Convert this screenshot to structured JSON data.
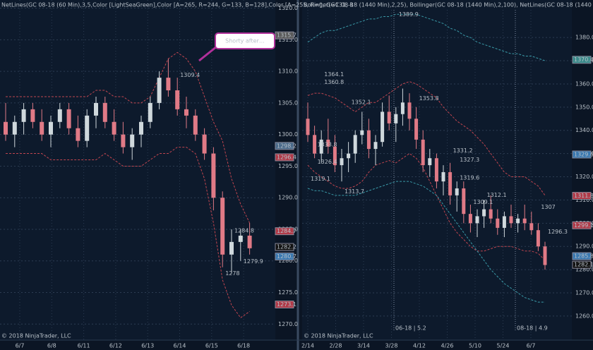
{
  "chart_data": [
    {
      "type": "candlestick",
      "header": "NetLines(GC 08-18 (60 Min),3,5,Color [LightSeaGreen],Color [A=265, R=244, G=133, B=128],Color [A=255, R=0, G=131, B",
      "footer": "© 2018 NinjaTrader, LLC",
      "annotation": "Shorty after…",
      "categories": [
        "6/7",
        "6/8",
        "6/11",
        "6/12",
        "6/13",
        "6/14",
        "6/15",
        "6/18"
      ],
      "ylim": [
        1268.8,
        1321.3
      ],
      "yticks": [
        {
          "value": 1320,
          "label": "1320.0"
        },
        {
          "value": 1315,
          "label": "1315.0"
        },
        {
          "value": 1310,
          "label": "1310.0"
        },
        {
          "value": 1305,
          "label": "1305.0"
        },
        {
          "value": 1300,
          "label": "1300.0"
        },
        {
          "value": 1295,
          "label": "1295.0"
        },
        {
          "value": 1290,
          "label": "1290.0"
        },
        {
          "value": 1285,
          "label": "1285.0"
        },
        {
          "value": 1280,
          "label": "1280.0"
        },
        {
          "value": 1275,
          "label": "1275.0"
        },
        {
          "value": 1270,
          "label": "1270.0"
        }
      ],
      "candles": {
        "open": [
          1302,
          1300,
          1302,
          1304,
          1302,
          1300,
          1302,
          1304,
          1301,
          1299,
          1303,
          1305,
          1302,
          1300,
          1298,
          1300,
          1302,
          1305,
          1309,
          1307,
          1304,
          1303,
          1300,
          1297,
          1290,
          1281,
          1283,
          1284
        ],
        "high": [
          1305,
          1303,
          1305,
          1305,
          1304,
          1303,
          1305,
          1305,
          1303,
          1304,
          1306,
          1306,
          1304,
          1302,
          1301,
          1303,
          1306,
          1310,
          1312,
          1309,
          1306,
          1304,
          1301,
          1298,
          1291,
          1285,
          1285,
          1286
        ],
        "low": [
          1299,
          1298,
          1300,
          1301,
          1299,
          1298,
          1301,
          1300,
          1298,
          1298,
          1301,
          1301,
          1299,
          1297,
          1296,
          1298,
          1301,
          1304,
          1306,
          1303,
          1301,
          1299,
          1296,
          1288,
          1279,
          1278,
          1280,
          1281
        ],
        "close": [
          1300,
          1302,
          1304,
          1302,
          1300,
          1302,
          1304,
          1301,
          1299,
          1303,
          1305,
          1302,
          1300,
          1298,
          1300,
          1302,
          1305,
          1309,
          1307,
          1304,
          1303,
          1300,
          1297,
          1290,
          1281,
          1283,
          1284,
          1282
        ]
      },
      "lines": [
        {
          "color": "#c0454f",
          "values": [
            1306,
            1306,
            1306,
            1306,
            1306,
            1306,
            1306,
            1306,
            1306,
            1306,
            1307,
            1307,
            1306,
            1306,
            1305,
            1305,
            1306,
            1309,
            1312,
            1313,
            1312,
            1310,
            1306,
            1302,
            1299,
            1293,
            1289,
            1286
          ]
        },
        {
          "color": "#c0454f",
          "values": [
            1297,
            1297,
            1297,
            1297,
            1297,
            1296,
            1296,
            1296,
            1296,
            1296,
            1296,
            1297,
            1296,
            1295,
            1295,
            1295,
            1296,
            1297,
            1297,
            1298,
            1298,
            1297,
            1293,
            1286,
            1277,
            1273,
            1271,
            1272
          ]
        }
      ],
      "price_tags": [
        {
          "value": 1315.7,
          "color": "#5a5a5a"
        },
        {
          "value": 1298.2,
          "color": "#4a6a8a"
        },
        {
          "value": 1296.4,
          "color": "#b03a48"
        },
        {
          "value": 1284.7,
          "color": "#b03a48"
        },
        {
          "value": 1282.2,
          "color": "#111111"
        },
        {
          "value": 1280.7,
          "color": "#3a78b0"
        },
        {
          "value": 1273.1,
          "color": "#b03a48"
        }
      ],
      "level_labels": [
        {
          "candle": 19,
          "value": 1309.4
        },
        {
          "candle": 25,
          "value": 1284.8
        },
        {
          "candle": 26,
          "value": 1279.9
        },
        {
          "candle": 24,
          "value": 1278
        }
      ]
    },
    {
      "type": "candlestick",
      "header": "Bollinger(GC 08-18 (1440 Min),2,25), Bollinger(GC 08-18 (1440 Min),2,100), NetLines(GC 08-18 (1440 Min),3,5,Color",
      "footer": "© 2018 NinjaTrader, LLC",
      "contracts": [
        "06-18 | 5.2",
        "08-18 | 4.9"
      ],
      "categories": [
        "2/14",
        "2/28",
        "3/14",
        "3/28",
        "4/12",
        "4/26",
        "5/10",
        "5/24",
        "6/7"
      ],
      "ylim": [
        1254.5,
        1391.9
      ],
      "yticks": [
        {
          "value": 1380,
          "label": "1380.0"
        },
        {
          "value": 1370,
          "label": "1370.0"
        },
        {
          "value": 1360,
          "label": "1360.0"
        },
        {
          "value": 1350,
          "label": "1350.0"
        },
        {
          "value": 1340,
          "label": "1340.0"
        },
        {
          "value": 1330,
          "label": "1330.0"
        },
        {
          "value": 1320,
          "label": "1320.0"
        },
        {
          "value": 1310,
          "label": "1310.0"
        },
        {
          "value": 1300,
          "label": "1300.0"
        },
        {
          "value": 1290,
          "label": "1290.0"
        },
        {
          "value": 1280,
          "label": "1280.0"
        },
        {
          "value": 1270,
          "label": "1270.0"
        },
        {
          "value": 1260,
          "label": "1260.0"
        }
      ],
      "candles": {
        "open": [
          1345,
          1338,
          1330,
          1336,
          1333,
          1325,
          1328,
          1330,
          1338,
          1340,
          1332,
          1335,
          1348,
          1343,
          1347,
          1352,
          1345,
          1336,
          1325,
          1328,
          1318,
          1322,
          1312,
          1315,
          1304,
          1300,
          1303,
          1306,
          1302,
          1298,
          1303,
          1300,
          1302,
          1300,
          1297,
          1290
        ],
        "high": [
          1352,
          1342,
          1340,
          1345,
          1338,
          1332,
          1335,
          1340,
          1348,
          1345,
          1338,
          1352,
          1355,
          1350,
          1358,
          1356,
          1350,
          1340,
          1332,
          1330,
          1325,
          1326,
          1318,
          1318,
          1308,
          1306,
          1310,
          1312,
          1306,
          1305,
          1308,
          1304,
          1308,
          1305,
          1300,
          1292
        ],
        "low": [
          1335,
          1328,
          1326,
          1330,
          1322,
          1318,
          1322,
          1326,
          1334,
          1328,
          1325,
          1333,
          1340,
          1335,
          1342,
          1340,
          1332,
          1322,
          1320,
          1315,
          1312,
          1308,
          1305,
          1300,
          1296,
          1294,
          1298,
          1300,
          1295,
          1294,
          1298,
          1296,
          1297,
          1295,
          1288,
          1280
        ],
        "close": [
          1338,
          1330,
          1336,
          1333,
          1325,
          1328,
          1330,
          1338,
          1340,
          1332,
          1335,
          1348,
          1343,
          1347,
          1352,
          1345,
          1336,
          1325,
          1328,
          1318,
          1322,
          1312,
          1315,
          1304,
          1300,
          1303,
          1306,
          1302,
          1298,
          1303,
          1300,
          1302,
          1300,
          1297,
          1290,
          1282
        ]
      },
      "lines": [
        {
          "color": "#c0454f",
          "values": [
            1355,
            1356,
            1356,
            1355,
            1354,
            1352,
            1350,
            1348,
            1350,
            1352,
            1352,
            1354,
            1356,
            1358,
            1360,
            1361,
            1360,
            1358,
            1356,
            1354,
            1350,
            1347,
            1344,
            1342,
            1340,
            1337,
            1334,
            1330,
            1326,
            1322,
            1320,
            1320,
            1320,
            1318,
            1316,
            1312
          ]
        },
        {
          "color": "#c0454f",
          "values": [
            1325,
            1322,
            1320,
            1318,
            1316,
            1315,
            1315,
            1316,
            1318,
            1322,
            1325,
            1326,
            1327,
            1326,
            1328,
            1330,
            1328,
            1324,
            1318,
            1312,
            1306,
            1300,
            1296,
            1293,
            1290,
            1288,
            1288,
            1289,
            1290,
            1290,
            1290,
            1289,
            1288,
            1288,
            1287,
            1284
          ]
        },
        {
          "color": "#3a9aa8",
          "values": [
            1378,
            1380,
            1382,
            1383,
            1383,
            1384,
            1385,
            1386,
            1387,
            1388,
            1388,
            1389,
            1389,
            1390,
            1390,
            1390,
            1390,
            1389,
            1388,
            1387,
            1386,
            1384,
            1383,
            1381,
            1380,
            1378,
            1377,
            1376,
            1375,
            1374,
            1373,
            1373,
            1372,
            1372,
            1371,
            1370
          ]
        },
        {
          "color": "#3a9aa8",
          "values": [
            1315,
            1314,
            1314,
            1313,
            1312,
            1312,
            1312,
            1312,
            1313,
            1314,
            1315,
            1316,
            1317,
            1318,
            1318,
            1318,
            1317,
            1316,
            1314,
            1312,
            1308,
            1304,
            1300,
            1296,
            1292,
            1288,
            1284,
            1280,
            1277,
            1274,
            1272,
            1270,
            1268,
            1267,
            1266,
            1266
          ]
        }
      ],
      "price_tags": [
        {
          "value": 1370.4,
          "color": "#3a8a8a"
        },
        {
          "value": 1329.6,
          "color": "#3a78b0"
        },
        {
          "value": 1311.8,
          "color": "#b03a48"
        },
        {
          "value": 1299.1,
          "color": "#b03a48"
        },
        {
          "value": 1285.8,
          "color": "#3a78b0"
        },
        {
          "value": 1282.1,
          "color": "#111111"
        }
      ],
      "level_labels": [
        {
          "candle": 2,
          "value": 1364.1
        },
        {
          "candle": 2,
          "value": 1360.8
        },
        {
          "candle": 6,
          "value": 1352.1
        },
        {
          "candle": 1,
          "value": 1333.8
        },
        {
          "candle": 1,
          "value": 1326.4
        },
        {
          "candle": 0,
          "value": 1319.1
        },
        {
          "candle": 5,
          "value": 1313.7
        },
        {
          "candle": 13,
          "value": 1389.9
        },
        {
          "candle": 16,
          "value": 1353.8
        },
        {
          "candle": 21,
          "value": 1331.2
        },
        {
          "candle": 22,
          "value": 1327.3
        },
        {
          "candle": 22,
          "value": 1319.6
        },
        {
          "candle": 26,
          "value": 1312.1
        },
        {
          "candle": 24,
          "value": 1309.1
        },
        {
          "candle": 34,
          "value": 1307
        },
        {
          "candle": 35,
          "value": 1296.3
        }
      ]
    }
  ]
}
